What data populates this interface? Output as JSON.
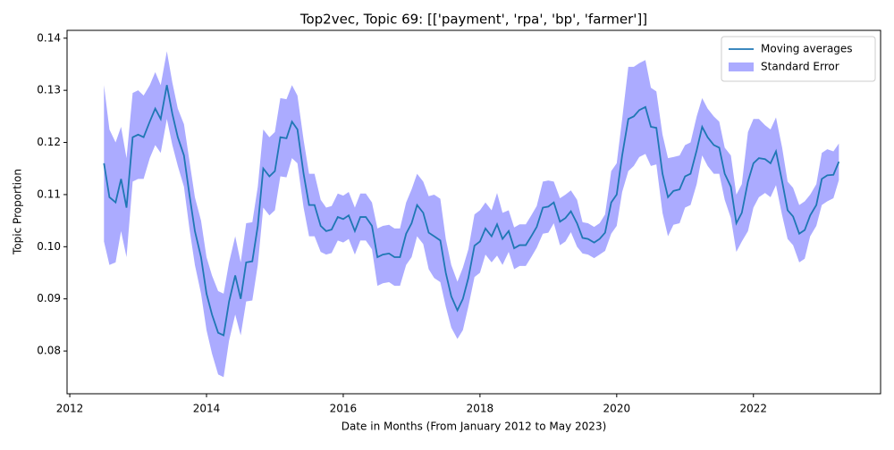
{
  "chart_data": {
    "type": "line",
    "title": "Top2vec, Topic 69: [['payment', 'rpa', 'bp', 'farmer']]",
    "x_label": "Date in Months (From January 2012 to May 2023)",
    "y_label": "Topic Proportion",
    "xlim": [
      2011.96,
      2023.86
    ],
    "xticks": [
      2012,
      2014,
      2016,
      2018,
      2020,
      2022
    ],
    "ylim": [
      0.0718,
      0.1415
    ],
    "yticks": [
      0.08,
      0.09,
      {
        "value": 0.1,
        "label": "0.10"
      },
      0.11,
      0.12,
      0.13,
      0.14
    ],
    "legend": "upper right",
    "x": [
      2012.5,
      2012.58,
      2012.67,
      2012.75,
      2012.83,
      2012.92,
      2013.0,
      2013.08,
      2013.17,
      2013.25,
      2013.33,
      2013.42,
      2013.5,
      2013.58,
      2013.67,
      2013.75,
      2013.83,
      2013.92,
      2014.0,
      2014.08,
      2014.17,
      2014.25,
      2014.33,
      2014.42,
      2014.5,
      2014.58,
      2014.67,
      2014.75,
      2014.83,
      2014.92,
      2015.0,
      2015.08,
      2015.17,
      2015.25,
      2015.33,
      2015.42,
      2015.5,
      2015.58,
      2015.67,
      2015.75,
      2015.83,
      2015.92,
      2016.0,
      2016.08,
      2016.17,
      2016.25,
      2016.33,
      2016.42,
      2016.5,
      2016.58,
      2016.67,
      2016.75,
      2016.83,
      2016.92,
      2017.0,
      2017.08,
      2017.17,
      2017.25,
      2017.33,
      2017.42,
      2017.5,
      2017.58,
      2017.67,
      2017.75,
      2017.83,
      2017.92,
      2018.0,
      2018.08,
      2018.17,
      2018.25,
      2018.33,
      2018.42,
      2018.5,
      2018.58,
      2018.67,
      2018.75,
      2018.83,
      2018.92,
      2019.0,
      2019.08,
      2019.17,
      2019.25,
      2019.33,
      2019.42,
      2019.5,
      2019.58,
      2019.67,
      2019.75,
      2019.83,
      2019.92,
      2020.0,
      2020.08,
      2020.17,
      2020.25,
      2020.33,
      2020.42,
      2020.5,
      2020.58,
      2020.67,
      2020.75,
      2020.83,
      2020.92,
      2021.0,
      2021.08,
      2021.17,
      2021.25,
      2021.33,
      2021.42,
      2021.5,
      2021.58,
      2021.67,
      2021.75,
      2021.83,
      2021.92,
      2022.0,
      2022.08,
      2022.17,
      2022.25,
      2022.33,
      2022.42,
      2022.5,
      2022.58,
      2022.67,
      2022.75,
      2022.83,
      2022.92,
      2023.0,
      2023.08,
      2023.17,
      2023.25
    ],
    "series": [
      {
        "name": "Moving averages",
        "color": "#1f77b4",
        "values": [
          0.116,
          0.1095,
          0.1085,
          0.113,
          0.1075,
          0.121,
          0.1215,
          0.121,
          0.124,
          0.1265,
          0.1245,
          0.131,
          0.1255,
          0.121,
          0.1175,
          0.11,
          0.103,
          0.098,
          0.091,
          0.087,
          0.0835,
          0.083,
          0.0895,
          0.0945,
          0.09,
          0.097,
          0.0972,
          0.104,
          0.115,
          0.1135,
          0.1145,
          0.121,
          0.1208,
          0.124,
          0.1225,
          0.114,
          0.108,
          0.108,
          0.104,
          0.103,
          0.1033,
          0.1057,
          0.1053,
          0.106,
          0.103,
          0.1057,
          0.1057,
          0.104,
          0.098,
          0.0985,
          0.0987,
          0.098,
          0.098,
          0.1025,
          0.1045,
          0.108,
          0.1065,
          0.1027,
          0.102,
          0.1012,
          0.095,
          0.0905,
          0.0878,
          0.09,
          0.094,
          0.1002,
          0.101,
          0.1035,
          0.102,
          0.1043,
          0.1015,
          0.103,
          0.0997,
          0.1003,
          0.1003,
          0.102,
          0.1038,
          0.1075,
          0.1077,
          0.1085,
          0.1048,
          0.1055,
          0.1068,
          0.1045,
          0.1017,
          0.1015,
          0.1008,
          0.1015,
          0.1027,
          0.1085,
          0.11,
          0.1175,
          0.1245,
          0.125,
          0.1262,
          0.1268,
          0.123,
          0.1228,
          0.114,
          0.1095,
          0.1107,
          0.111,
          0.1135,
          0.114,
          0.1185,
          0.123,
          0.121,
          0.1195,
          0.119,
          0.114,
          0.1115,
          0.1045,
          0.1065,
          0.1125,
          0.116,
          0.117,
          0.1168,
          0.116,
          0.1183,
          0.1125,
          0.107,
          0.1058,
          0.1025,
          0.1032,
          0.106,
          0.108,
          0.113,
          0.1137,
          0.1138,
          0.1163
        ]
      }
    ],
    "band": {
      "name": "Standard Error",
      "color": "#0000ff",
      "errors": [
        0.015,
        0.013,
        0.0115,
        0.01,
        0.0095,
        0.0085,
        0.0085,
        0.008,
        0.007,
        0.007,
        0.0065,
        0.0065,
        0.006,
        0.0055,
        0.006,
        0.0065,
        0.0065,
        0.007,
        0.007,
        0.0075,
        0.008,
        0.008,
        0.0075,
        0.0075,
        0.007,
        0.0075,
        0.0075,
        0.0075,
        0.0075,
        0.0075,
        0.0075,
        0.0075,
        0.0075,
        0.007,
        0.0065,
        0.0065,
        0.006,
        0.006,
        0.005,
        0.0045,
        0.0045,
        0.0045,
        0.0045,
        0.0045,
        0.0045,
        0.0045,
        0.0045,
        0.0045,
        0.0055,
        0.0055,
        0.0055,
        0.0055,
        0.0055,
        0.006,
        0.0065,
        0.006,
        0.006,
        0.007,
        0.008,
        0.008,
        0.0065,
        0.006,
        0.0055,
        0.006,
        0.0055,
        0.006,
        0.006,
        0.005,
        0.005,
        0.006,
        0.005,
        0.004,
        0.004,
        0.004,
        0.004,
        0.004,
        0.004,
        0.005,
        0.005,
        0.004,
        0.0045,
        0.0045,
        0.004,
        0.0045,
        0.003,
        0.003,
        0.003,
        0.003,
        0.0035,
        0.006,
        0.006,
        0.007,
        0.01,
        0.0095,
        0.009,
        0.009,
        0.0075,
        0.007,
        0.0075,
        0.0075,
        0.0065,
        0.0065,
        0.006,
        0.006,
        0.0065,
        0.0055,
        0.0055,
        0.0055,
        0.005,
        0.005,
        0.006,
        0.0055,
        0.0055,
        0.0095,
        0.0085,
        0.0075,
        0.0065,
        0.0065,
        0.0065,
        0.0065,
        0.0055,
        0.0055,
        0.0055,
        0.0055,
        0.004,
        0.004,
        0.005,
        0.005,
        0.0045,
        0.0035
      ]
    }
  }
}
